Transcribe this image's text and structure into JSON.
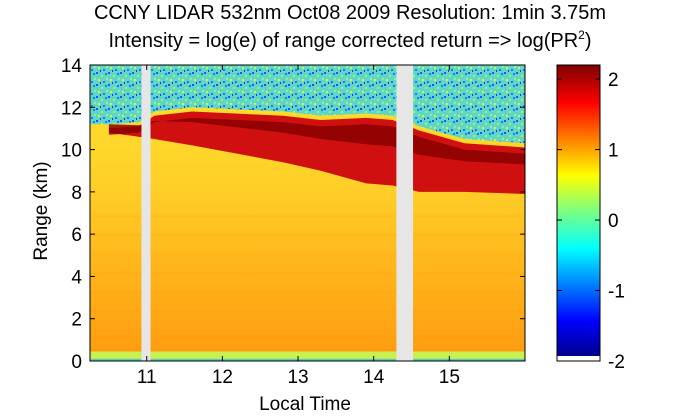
{
  "title_line1": "CCNY LIDAR 532nm Oct08 2009 Resolution: 1min 3.75m",
  "title_line2_main": "Intensity = log(e) of range corrected return => log(PR",
  "title_line2_sup": "2",
  "title_line2_end": ")",
  "chart_data": {
    "type": "heatmap",
    "xlabel": "Local Time",
    "ylabel": "Range (km)",
    "xlim": [
      10.25,
      16.0
    ],
    "ylim": [
      0,
      14
    ],
    "x_ticks": [
      "11",
      "12",
      "13",
      "14",
      "15"
    ],
    "y_ticks": [
      "0",
      "2",
      "4",
      "6",
      "8",
      "10",
      "12",
      "14"
    ],
    "colorbar": {
      "range": [
        -2,
        2.2
      ],
      "ticks": [
        "2",
        "1",
        "0",
        "-1",
        "-2"
      ],
      "colormap": "jet"
    },
    "data_gaps": [
      [
        10.93,
        11.05
      ],
      [
        14.3,
        14.52
      ]
    ],
    "cloud_layer": {
      "description_values": "bottom_km / top_km at local time",
      "points": [
        {
          "x": 10.5,
          "bottom": 10.8,
          "top": 11.0
        },
        {
          "x": 10.9,
          "bottom": 10.6,
          "top": 11.1
        },
        {
          "x": 11.1,
          "bottom": 10.5,
          "top": 11.6
        },
        {
          "x": 11.6,
          "bottom": 10.2,
          "top": 11.8
        },
        {
          "x": 12.2,
          "bottom": 9.8,
          "top": 11.7
        },
        {
          "x": 12.8,
          "bottom": 9.4,
          "top": 11.6
        },
        {
          "x": 13.3,
          "bottom": 9.0,
          "top": 11.4
        },
        {
          "x": 13.9,
          "bottom": 8.4,
          "top": 11.5
        },
        {
          "x": 14.25,
          "bottom": 8.3,
          "top": 11.4
        },
        {
          "x": 14.6,
          "bottom": 8.0,
          "top": 10.9
        },
        {
          "x": 15.2,
          "bottom": 8.0,
          "top": 10.3
        },
        {
          "x": 16.0,
          "bottom": 7.9,
          "top": 10.1
        }
      ]
    }
  }
}
